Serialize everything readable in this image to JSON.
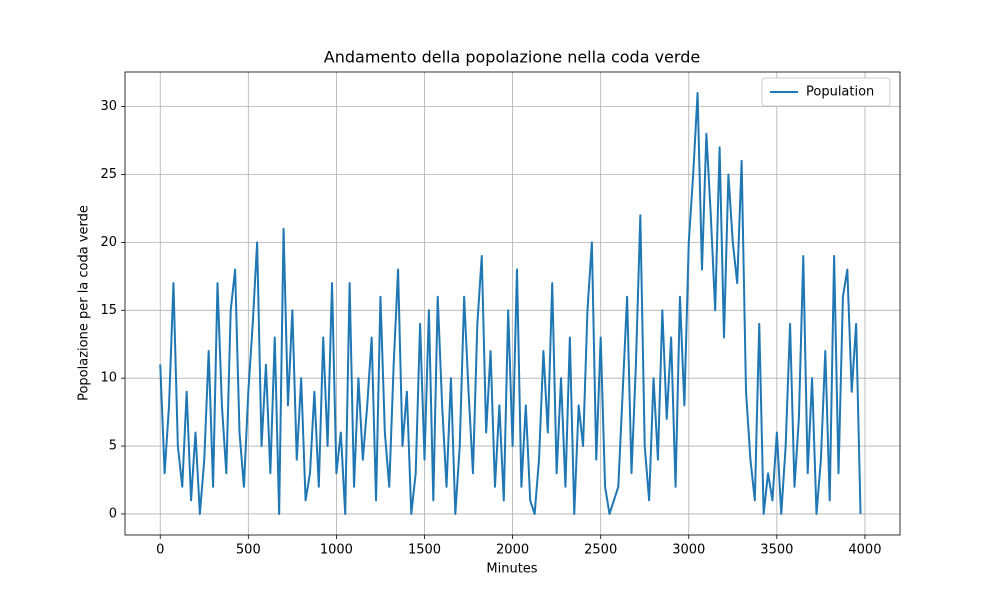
{
  "chart_data": {
    "type": "line",
    "title": "Andamento della popolazione nella coda verde",
    "x_label": "Minutes",
    "y_label": "Popolazione per la coda verde",
    "x": [
      0,
      25,
      50,
      75,
      100,
      125,
      150,
      175,
      200,
      225,
      250,
      275,
      300,
      325,
      350,
      375,
      400,
      425,
      450,
      475,
      500,
      525,
      550,
      575,
      600,
      625,
      650,
      675,
      700,
      725,
      750,
      775,
      800,
      825,
      850,
      875,
      900,
      925,
      950,
      975,
      1000,
      1025,
      1050,
      1075,
      1100,
      1125,
      1150,
      1175,
      1200,
      1225,
      1250,
      1275,
      1300,
      1325,
      1350,
      1375,
      1400,
      1425,
      1450,
      1475,
      1500,
      1525,
      1550,
      1575,
      1600,
      1625,
      1650,
      1675,
      1700,
      1725,
      1750,
      1775,
      1800,
      1825,
      1850,
      1875,
      1900,
      1925,
      1950,
      1975,
      2000,
      2025,
      2050,
      2075,
      2100,
      2125,
      2150,
      2175,
      2200,
      2225,
      2250,
      2275,
      2300,
      2325,
      2350,
      2375,
      2400,
      2425,
      2450,
      2475,
      2500,
      2525,
      2550,
      2575,
      2600,
      2625,
      2650,
      2675,
      2700,
      2725,
      2750,
      2775,
      2800,
      2825,
      2850,
      2875,
      2900,
      2925,
      2950,
      2975,
      3000,
      3025,
      3050,
      3075,
      3100,
      3125,
      3150,
      3175,
      3200,
      3225,
      3250,
      3275,
      3300,
      3325,
      3350,
      3375,
      3400,
      3425,
      3450,
      3475,
      3500,
      3525,
      3550,
      3575,
      3600,
      3625,
      3650,
      3675,
      3700,
      3725,
      3750,
      3775,
      3800,
      3825,
      3850,
      3875,
      3900,
      3925,
      3950,
      3975
    ],
    "series": [
      {
        "name": "Population",
        "color": "#1f77b4",
        "values": [
          11,
          3,
          8,
          17,
          5,
          2,
          9,
          1,
          6,
          0,
          4,
          12,
          2,
          17,
          8,
          3,
          15,
          18,
          6,
          2,
          9,
          14,
          20,
          5,
          11,
          3,
          13,
          0,
          21,
          8,
          15,
          4,
          10,
          1,
          3,
          9,
          2,
          13,
          5,
          17,
          3,
          6,
          0,
          17,
          2,
          10,
          4,
          8,
          13,
          1,
          16,
          6,
          2,
          11,
          18,
          5,
          9,
          0,
          3,
          14,
          4,
          15,
          1,
          16,
          8,
          2,
          10,
          0,
          5,
          16,
          9,
          3,
          14,
          19,
          6,
          12,
          2,
          8,
          1,
          15,
          5,
          18,
          2,
          8,
          1,
          0,
          4,
          12,
          6,
          17,
          3,
          10,
          2,
          13,
          0,
          8,
          5,
          15,
          20,
          4,
          13,
          2,
          0,
          1,
          2,
          9,
          16,
          3,
          11,
          22,
          5,
          1,
          10,
          4,
          15,
          7,
          13,
          2,
          16,
          8,
          20,
          25,
          31,
          18,
          28,
          22,
          15,
          27,
          13,
          25,
          20,
          17,
          26,
          9,
          4,
          1,
          14,
          0,
          3,
          1,
          6,
          0,
          5,
          14,
          2,
          7,
          19,
          3,
          10,
          0,
          4,
          12,
          1,
          19,
          3,
          16,
          18,
          9,
          14,
          0
        ]
      }
    ],
    "xlim": [
      -200,
      4199
    ],
    "ylim": [
      -1.55,
      32.55
    ],
    "xticks": [
      0,
      500,
      1000,
      1500,
      2000,
      2500,
      3000,
      3500,
      4000
    ],
    "yticks": [
      0,
      5,
      10,
      15,
      20,
      25,
      30
    ],
    "grid": true,
    "legend": "upper right"
  }
}
